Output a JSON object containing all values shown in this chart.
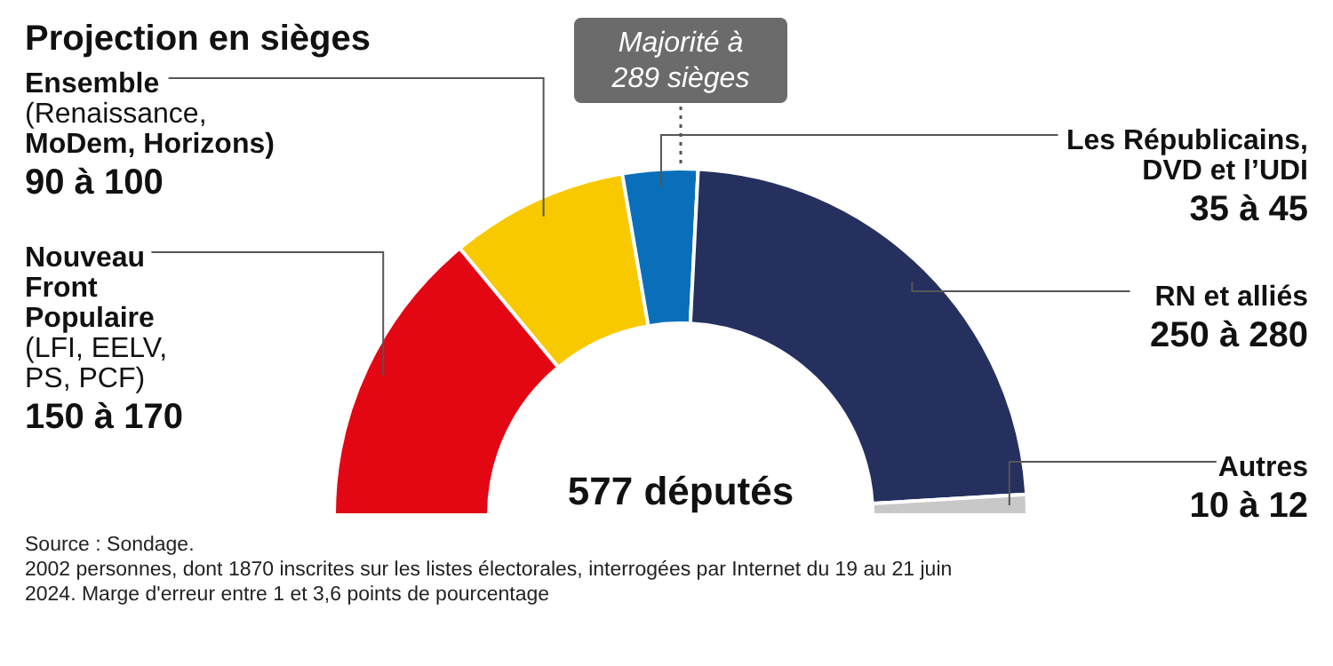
{
  "chart_data": {
    "type": "donut",
    "title": "Projection en sièges",
    "categories": [
      "Nouveau\nFront\nPopulaire\n(LFI, EELV,\nPS, PCF)\n150 à 170",
      "Ensemble\n(Renaissance,\nMoDem, Horizons)\n90 à 100",
      "Les Républicains,\nDVD et l’UDI\n35 à 45",
      "RN et alliés\n250 à 280",
      "Autres\n10 à 12"
    ],
    "values": [
      28.0,
      16.6,
      7.0,
      46.5,
      1.9
    ],
    "colors": [
      "#e30613",
      "#f9c900",
      "#0a6fba",
      "#25305e",
      "#c8c8c8"
    ],
    "annotations": [
      "Majorité à 289 sièges",
      "577 députés",
      "Source : Sondage.",
      "2002 personnes, dont 1870 inscrites sur les listes électorales, interrogées par Internet du 19 au 21 juin 2024. Marge d'erreur entre 1 et 3,6 points de pourcentage"
    ]
  }
}
